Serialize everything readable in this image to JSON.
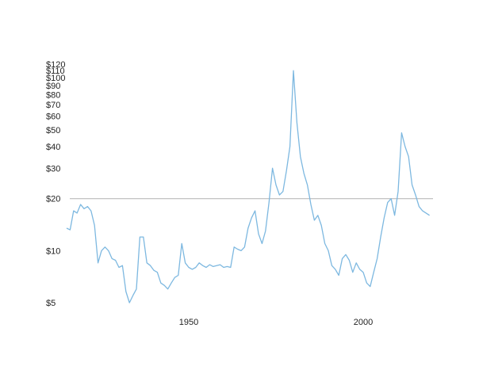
{
  "chart_data": {
    "type": "line",
    "title": "",
    "xlabel": "",
    "ylabel": "",
    "y_scale": "log",
    "ylim": [
      4.6,
      125
    ],
    "xlim": [
      1915,
      2020
    ],
    "y_ticks": [
      {
        "value": 5,
        "label": "$5"
      },
      {
        "value": 10,
        "label": "$10"
      },
      {
        "value": 20,
        "label": "$20"
      },
      {
        "value": 30,
        "label": "$30"
      },
      {
        "value": 40,
        "label": "$40"
      },
      {
        "value": 50,
        "label": "$50"
      },
      {
        "value": 60,
        "label": "$60"
      },
      {
        "value": 70,
        "label": "$70"
      },
      {
        "value": 80,
        "label": "$80"
      },
      {
        "value": 90,
        "label": "$90"
      },
      {
        "value": 100,
        "label": "$100"
      },
      {
        "value": 110,
        "label": "$110"
      },
      {
        "value": 120,
        "label": "$120"
      }
    ],
    "x_ticks": [
      {
        "value": 1950,
        "label": "1950"
      },
      {
        "value": 2000,
        "label": "2000"
      }
    ],
    "reference_line": {
      "value": 20,
      "color": "#b0b0b0"
    },
    "line_color": "#7db8e0",
    "grid": false,
    "series": [
      {
        "x": [
          1915,
          1916,
          1917,
          1918,
          1919,
          1920,
          1921,
          1922,
          1923,
          1924,
          1925,
          1926,
          1927,
          1928,
          1929,
          1930,
          1931,
          1932,
          1933,
          1934,
          1935,
          1936,
          1937,
          1938,
          1939,
          1940,
          1941,
          1942,
          1943,
          1944,
          1945,
          1946,
          1947,
          1948,
          1949,
          1950,
          1951,
          1952,
          1953,
          1954,
          1955,
          1956,
          1957,
          1958,
          1959,
          1960,
          1961,
          1962,
          1963,
          1964,
          1965,
          1966,
          1967,
          1968,
          1969,
          1970,
          1971,
          1972,
          1973,
          1974,
          1975,
          1976,
          1977,
          1978,
          1979,
          1980,
          1981,
          1982,
          1983,
          1984,
          1985,
          1986,
          1987,
          1988,
          1989,
          1990,
          1991,
          1992,
          1993,
          1994,
          1995,
          1996,
          1997,
          1998,
          1999,
          2000,
          2001,
          2002,
          2003,
          2004,
          2005,
          2006,
          2007,
          2008,
          2009,
          2010,
          2011,
          2012,
          2013,
          2014,
          2015,
          2016,
          2017,
          2018,
          2019
        ],
        "y": [
          13.5,
          13.2,
          17.0,
          16.5,
          18.5,
          17.5,
          18.0,
          17.0,
          14.0,
          8.5,
          10.0,
          10.5,
          10.0,
          9.0,
          8.8,
          8.0,
          8.2,
          5.8,
          5.0,
          5.5,
          6.0,
          12.0,
          12.0,
          8.5,
          8.2,
          7.7,
          7.5,
          6.5,
          6.3,
          6.0,
          6.5,
          7.0,
          7.2,
          11.0,
          8.5,
          8.0,
          7.8,
          8.0,
          8.5,
          8.2,
          8.0,
          8.3,
          8.1,
          8.2,
          8.3,
          8.0,
          8.1,
          8.0,
          10.5,
          10.2,
          10.0,
          10.5,
          13.5,
          15.5,
          17.0,
          12.5,
          11.0,
          13.0,
          19.0,
          30.0,
          24.0,
          21.0,
          22.0,
          29.0,
          40.0,
          110.0,
          55.0,
          35.0,
          28.0,
          24.0,
          18.5,
          15.0,
          16.0,
          14.0,
          11.0,
          10.0,
          8.2,
          7.8,
          7.2,
          9.0,
          9.5,
          8.8,
          7.5,
          8.5,
          7.8,
          7.5,
          6.5,
          6.2,
          7.5,
          9.0,
          12.0,
          15.5,
          19.0,
          20.0,
          16.0,
          22.0,
          48.0,
          40.0,
          35.0,
          24.0,
          21.0,
          18.0,
          17.0,
          16.5,
          16.0
        ]
      }
    ]
  }
}
